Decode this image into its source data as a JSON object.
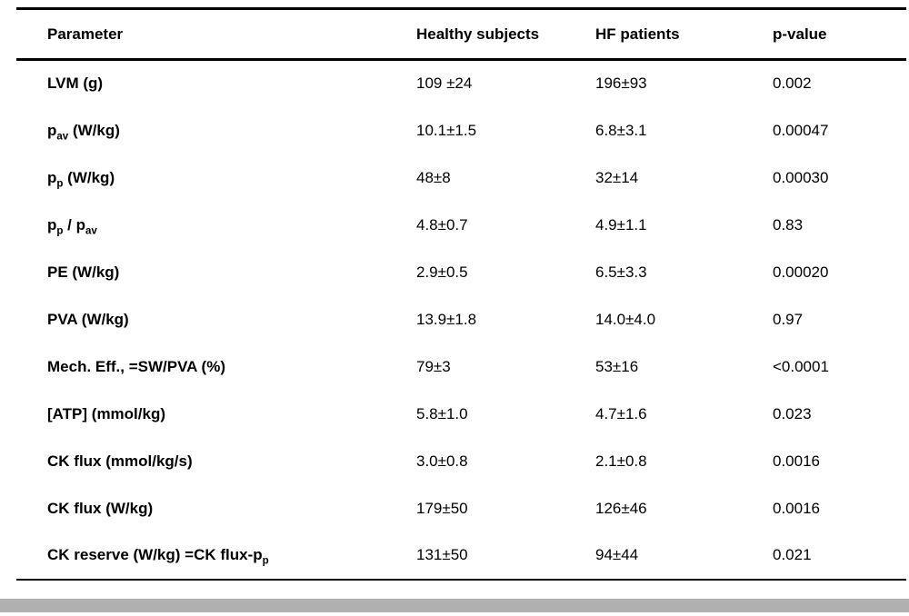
{
  "table": {
    "columns": [
      "Parameter",
      "Healthy subjects",
      "HF patients",
      "p-value"
    ],
    "rows": [
      {
        "parameter": "LVM (g)",
        "healthy": "109 ±24",
        "hf": "196±93",
        "p": "0.002"
      },
      {
        "parameter": "p_{av} (W/kg)",
        "healthy": "10.1±1.5",
        "hf": "6.8±3.1",
        "p": "0.00047"
      },
      {
        "parameter": "p_{p} (W/kg)",
        "healthy": "48±8",
        "hf": "32±14",
        "p": "0.00030"
      },
      {
        "parameter": "p_{p} / p_{av}",
        "healthy": "4.8±0.7",
        "hf": "4.9±1.1",
        "p": "0.83"
      },
      {
        "parameter": "PE  (W/kg)",
        "healthy": "2.9±0.5",
        "hf": "6.5±3.3",
        "p": "0.00020"
      },
      {
        "parameter": "PVA  (W/kg)",
        "healthy": "13.9±1.8",
        "hf": "14.0±4.0",
        "p": "0.97"
      },
      {
        "parameter": "Mech. Eff., =SW/PVA (%)",
        "healthy": "79±3",
        "hf": "53±16",
        "p": "<0.0001"
      },
      {
        "parameter": "[ATP] (mmol/kg)",
        "healthy": "5.8±1.0",
        "hf": "4.7±1.6",
        "p": "0.023"
      },
      {
        "parameter": "CK flux (mmol/kg/s)",
        "healthy": "3.0±0.8",
        "hf": "2.1±0.8",
        "p": "0.0016"
      },
      {
        "parameter": "CK flux (W/kg)",
        "healthy": "179±50",
        "hf": "126±46",
        "p": "0.0016"
      },
      {
        "parameter": "CK reserve (W/kg) =CK flux-p_{p}",
        "healthy": "131±50",
        "hf": "94±44",
        "p": "0.021"
      }
    ]
  },
  "colors": {
    "background": "#ffffff",
    "text": "#000000",
    "rule": "#000000",
    "footer_bar": "#b0b0b0"
  }
}
